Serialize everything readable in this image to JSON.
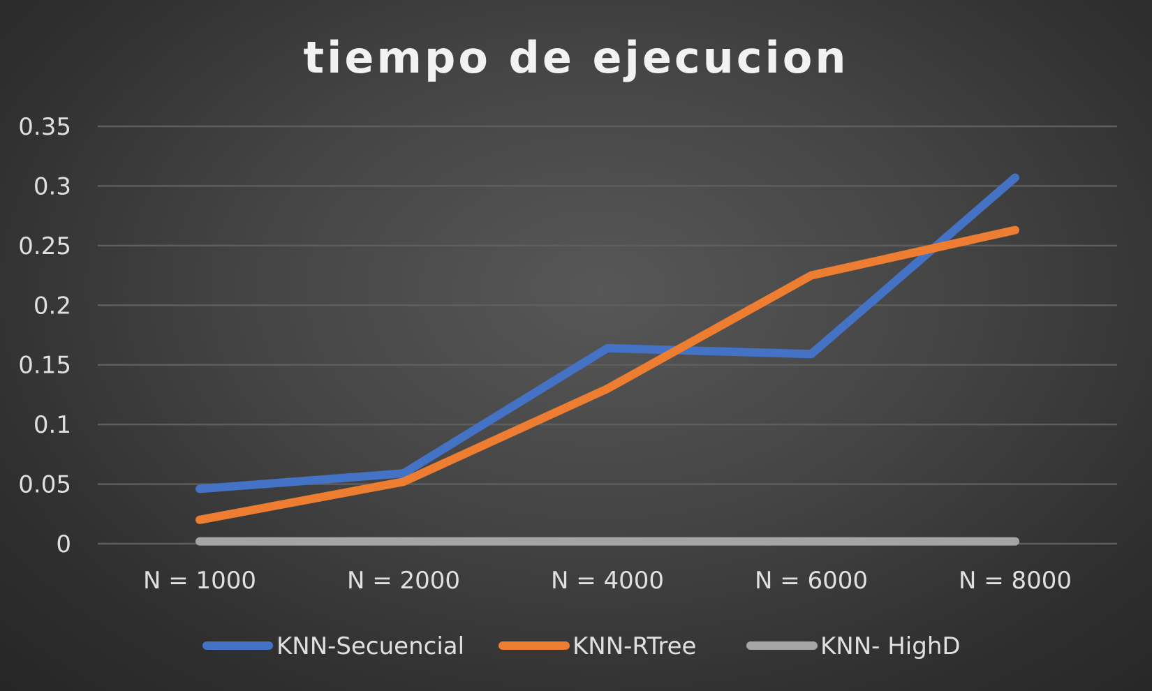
{
  "chart_data": {
    "type": "line",
    "title": "tiempo de ejecucion",
    "xlabel": "",
    "ylabel": "",
    "categories": [
      "N = 1000",
      "N = 2000",
      "N = 4000",
      "N = 6000",
      "N = 8000"
    ],
    "ylim": [
      0,
      0.35
    ],
    "yticks": [
      "0",
      "0.05",
      "0.1",
      "0.15",
      "0.2",
      "0.25",
      "0.3",
      "0.35"
    ],
    "grid": true,
    "legend_position": "bottom",
    "series": [
      {
        "name": "KNN-Secuencial",
        "color": "#4472c4",
        "values": [
          0.046,
          0.059,
          0.164,
          0.159,
          0.307
        ]
      },
      {
        "name": "KNN-RTree",
        "color": "#ed7d31",
        "values": [
          0.02,
          0.052,
          0.13,
          0.225,
          0.263
        ]
      },
      {
        "name": "KNN- HighD",
        "color": "#a5a5a5",
        "values": [
          0.002,
          0.002,
          0.002,
          0.002,
          0.002
        ]
      }
    ]
  }
}
